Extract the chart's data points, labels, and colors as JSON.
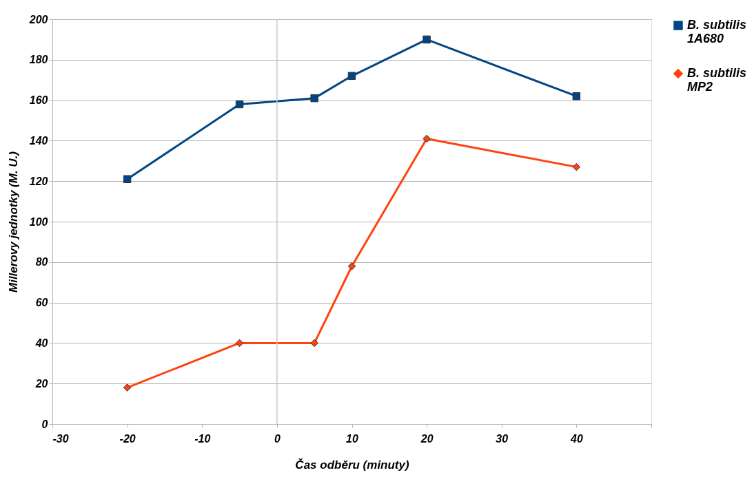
{
  "chart_data": {
    "type": "line",
    "xlabel": "Čas odběru (minuty)",
    "ylabel": "Millerovy jednotky (M. U.)",
    "xlim": [
      -30,
      50
    ],
    "xticks": [
      -30,
      -20,
      -10,
      0,
      10,
      20,
      30,
      40,
      {
        "value": 50,
        "label": null
      }
    ],
    "ylim": [
      0,
      200
    ],
    "yticks": [
      0,
      20,
      40,
      60,
      80,
      100,
      120,
      140,
      160,
      180,
      200
    ],
    "grid": "y",
    "legend": "right",
    "line_style": "solid",
    "ref_lines": [
      {
        "axis": "x",
        "value": 0,
        "color": "#c8c8c8"
      }
    ],
    "series": [
      {
        "name": "B. subtilis 1A680",
        "color": "#004586",
        "marker": "square",
        "x": [
          -20,
          -5,
          5,
          10,
          20,
          40
        ],
        "values": [
          121,
          158,
          161,
          172,
          190,
          162
        ]
      },
      {
        "name": "B. subtilis MP2",
        "color": "#ff420e",
        "marker": "diamond",
        "x": [
          -20,
          -5,
          5,
          10,
          20,
          40
        ],
        "values": [
          18,
          40,
          40,
          78,
          141,
          127
        ]
      }
    ]
  }
}
